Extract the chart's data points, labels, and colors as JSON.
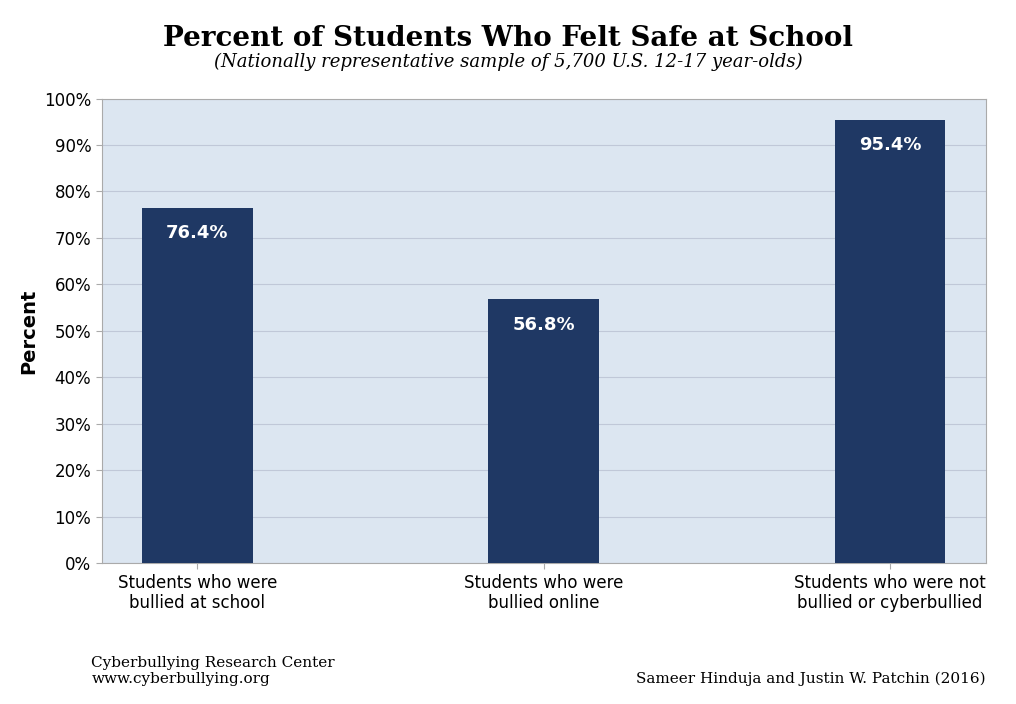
{
  "title": "Percent of Students Who Felt Safe at School",
  "subtitle": "(Nationally representative sample of 5,700 U.S. 12-17 year-olds)",
  "categories": [
    "Students who were\nbullied at school",
    "Students who were\nbullied online",
    "Students who were not\nbullied or cyberbullied"
  ],
  "values": [
    76.4,
    56.8,
    95.4
  ],
  "bar_color": "#1f3864",
  "plot_bg_color": "#dce6f1",
  "ylabel": "Percent",
  "ylim": [
    0,
    100
  ],
  "yticks": [
    0,
    10,
    20,
    30,
    40,
    50,
    60,
    70,
    80,
    90,
    100
  ],
  "ytick_labels": [
    "0%",
    "10%",
    "20%",
    "30%",
    "40%",
    "50%",
    "60%",
    "70%",
    "80%",
    "90%",
    "100%"
  ],
  "label_color": "#ffffff",
  "title_fontsize": 20,
  "subtitle_fontsize": 13,
  "ylabel_fontsize": 14,
  "tick_fontsize": 12,
  "bar_label_fontsize": 13,
  "footer_left_line1": "Cyberbullying Research Center",
  "footer_left_line2": "www.cyberbullying.org",
  "footer_right": "Sameer Hinduja and Justin W. Patchin (2016)",
  "footer_fontsize": 11,
  "outer_bg_color": "#ffffff",
  "grid_color": "#c0c8d8",
  "spine_color": "#aaaaaa",
  "bar_width": 0.32
}
